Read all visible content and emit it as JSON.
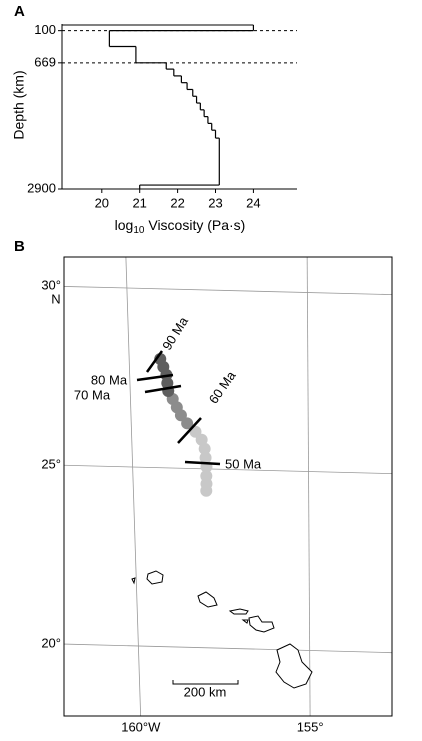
{
  "chart_data": [
    {
      "type": "step",
      "panel_label": "A",
      "y_label": "Depth (km)",
      "x_label": [
        "log",
        "10",
        " Viscosity (Pa·s)"
      ],
      "depth_edges": [
        0,
        100,
        380,
        669,
        780,
        900,
        1020,
        1140,
        1260,
        1380,
        1500,
        1620,
        1740,
        1860,
        2000,
        2830,
        2900
      ],
      "values": [
        24,
        20.2,
        20.9,
        21.7,
        21.9,
        22.1,
        22.25,
        22.4,
        22.5,
        22.6,
        22.7,
        22.8,
        22.9,
        23.0,
        23.1,
        21.0
      ],
      "color": "#000000",
      "xlim": [
        18.95,
        25.15
      ],
      "xticks": [
        20,
        21,
        22,
        23,
        24
      ],
      "ylim": [
        0,
        2900
      ],
      "y_reversed": true,
      "yticks": [
        100,
        669,
        2900
      ],
      "reference_depths": [
        100,
        669
      ]
    },
    {
      "type": "map",
      "panel_label": "B",
      "lonlim": [
        -162.2,
        -152.6
      ],
      "latlim": [
        17.9,
        31.1
      ],
      "lon_ticks": [
        {
          "value": -160,
          "label": "160°W"
        },
        {
          "value": -155,
          "label": "155°"
        }
      ],
      "lat_ticks": [
        {
          "value": 30,
          "label": "30°"
        },
        {
          "value": 25,
          "label": "25°"
        },
        {
          "value": 20,
          "label": "20°"
        }
      ],
      "lat_unit": "N",
      "series": [
        {
          "color": "#c8c8c8",
          "lon": [
            -158.19,
            -158.02,
            -157.94,
            -157.92,
            -157.9,
            -157.91,
            -157.91,
            -157.92
          ],
          "lat": [
            26.03,
            25.81,
            25.56,
            25.31,
            25.06,
            24.8,
            24.58,
            24.39
          ]
        },
        {
          "color": "#8c8c8c",
          "lon": [
            -158.81,
            -158.7,
            -158.59,
            -158.42
          ],
          "lat": [
            26.93,
            26.7,
            26.48,
            26.26
          ]
        },
        {
          "color": "#5e5e5e",
          "lon": [
            -159.13,
            -159.05,
            -158.97,
            -158.95,
            -158.93
          ],
          "lat": [
            28.04,
            27.82,
            27.6,
            27.37,
            27.15
          ]
        }
      ],
      "age_labels": [
        "90 Ma",
        "80 Ma",
        "70 Ma",
        "60 Ma",
        "50 Ma"
      ],
      "scale_label": "200 km"
    }
  ]
}
